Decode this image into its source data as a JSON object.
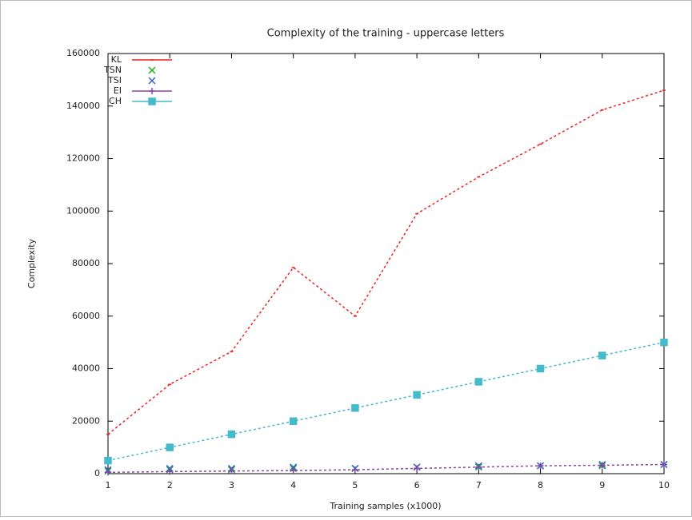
{
  "chart_data": {
    "type": "line",
    "title": "Complexity of the training - uppercase letters",
    "x_label": "Training samples (x1000)",
    "y_label": "Complexity",
    "x": [
      1,
      2,
      3,
      4,
      5,
      6,
      7,
      8,
      9,
      10
    ],
    "xlim": [
      1,
      10
    ],
    "xticks": [
      1,
      2,
      3,
      4,
      5,
      6,
      7,
      8,
      9,
      10
    ],
    "ylim": [
      0,
      160000
    ],
    "yticks": [
      0,
      20000,
      40000,
      60000,
      80000,
      100000,
      120000,
      140000,
      160000
    ],
    "legend": "top-left",
    "series": [
      {
        "name": "KL",
        "color": "#ee2222",
        "style": "line",
        "values": [
          15000,
          34000,
          46500,
          78500,
          60000,
          99000,
          113000,
          125500,
          138500,
          146000
        ]
      },
      {
        "name": "TSN",
        "color": "#22aa22",
        "style": "cross",
        "values": [
          1000,
          1500,
          1500,
          2000,
          2000,
          2500,
          2500,
          3000,
          3000,
          3500
        ]
      },
      {
        "name": "TSI",
        "color": "#3366cc",
        "style": "cross",
        "values": [
          1500,
          2000,
          2000,
          2500,
          2000,
          2500,
          3000,
          3000,
          3500,
          3500
        ]
      },
      {
        "name": "EI",
        "color": "#8844aa",
        "style": "plus-line",
        "values": [
          500,
          800,
          1000,
          1200,
          1500,
          2000,
          2500,
          3000,
          3200,
          3500
        ]
      },
      {
        "name": "CH",
        "color": "#44bbcc",
        "style": "square-line",
        "values": [
          5000,
          10000,
          15000,
          20000,
          25000,
          30000,
          35000,
          40000,
          45000,
          50000
        ]
      }
    ]
  }
}
